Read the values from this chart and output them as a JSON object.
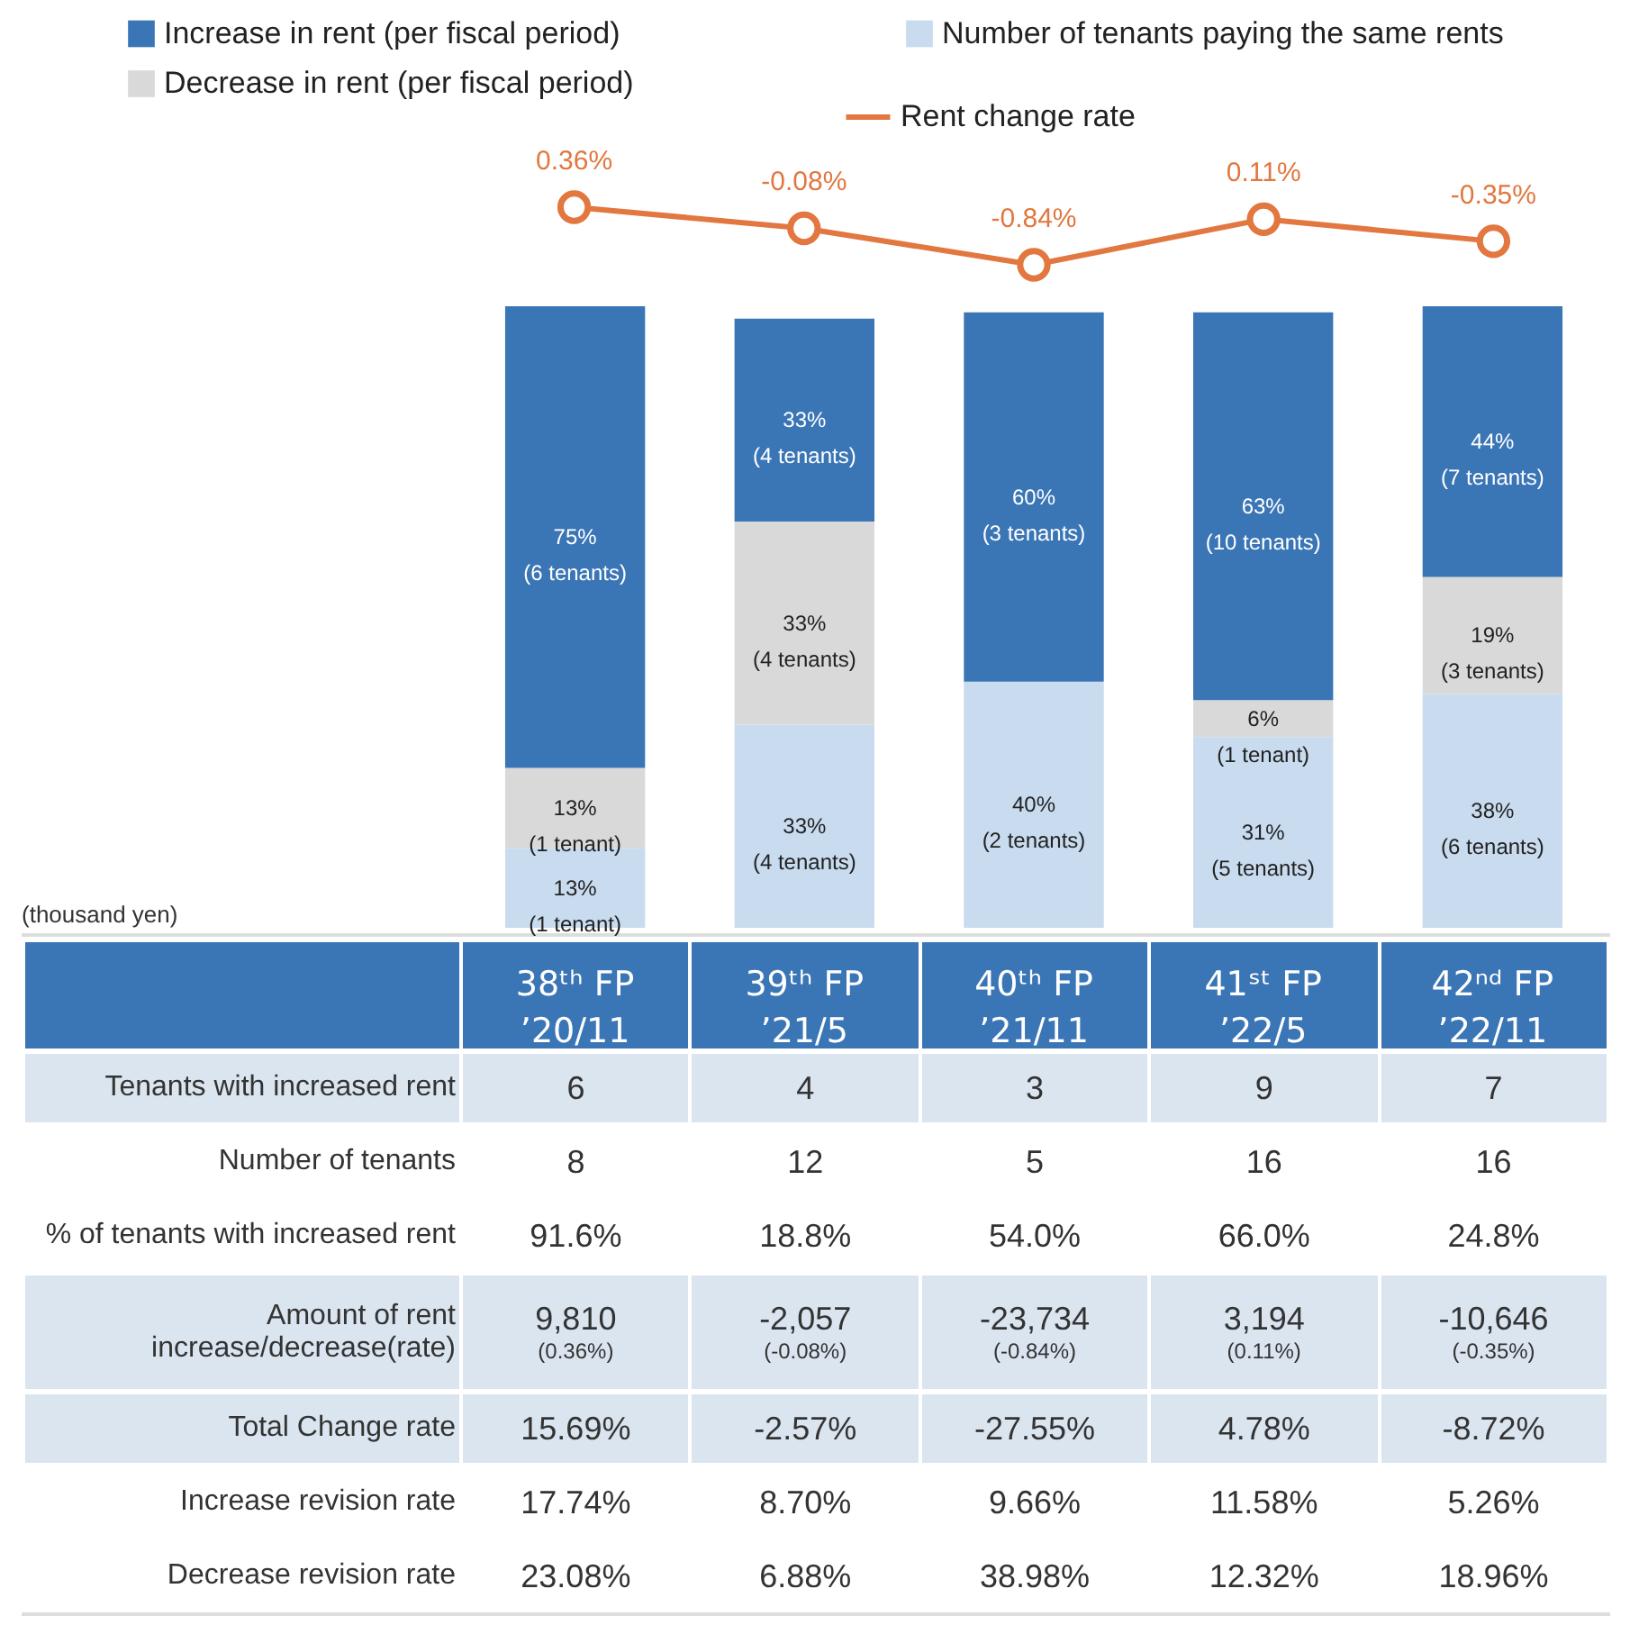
{
  "chart_data": [
    {
      "type": "line",
      "legend": "top",
      "marker": "circle",
      "categories": [
        null,
        null,
        null,
        null,
        null
      ],
      "series": [
        {
          "name": "Rent change rate",
          "color": "#e2773f",
          "values": [
            0.36,
            -0.08,
            -0.84,
            0.11,
            -0.35
          ],
          "value_labels": [
            "0.36%",
            "-0.08%",
            "-0.84%",
            "0.11%",
            "-0.35%"
          ]
        }
      ]
    },
    {
      "type": "bar",
      "stacked": true,
      "legend": "top left",
      "categories": [
        "38ᵗʰ FP\n’20/11",
        "39ᵗʰ FP\n’21/5",
        "40ᵗʰ FP\n’21/11",
        "41ˢᵗ FP\n’22/5",
        "42ⁿᵈ FP\n’22/11"
      ],
      "series": [
        {
          "name": "Number of tenants paying the same rents",
          "color": "#c8dbef",
          "values": [
            13,
            33,
            40,
            31,
            38
          ],
          "value_labels": [
            "13%\n(1 tenant)",
            "33%\n(4 tenants)",
            "40%\n(2 tenants)",
            "31%\n(5 tenants)",
            "38%\n(6 tenants)"
          ]
        },
        {
          "name": "Decrease in rent (per fiscal period)",
          "color": "#d9d9d9",
          "values": [
            13,
            33,
            null,
            6,
            19
          ],
          "value_labels": [
            "13%\n(1 tenant)",
            "33%\n(4 tenants)",
            null,
            "6%\n(1 tenant)",
            "19%\n(3 tenants)"
          ]
        },
        {
          "name": "Increase in rent (per fiscal period)",
          "color": "#3a75b5",
          "values": [
            75,
            33,
            60,
            63,
            44
          ],
          "value_labels": [
            "75%\n(6 tenants)",
            "33%\n(4 tenants)",
            "60%\n(3 tenants)",
            "63%\n(10 tenants)",
            "44%\n(7 tenants)"
          ]
        }
      ]
    },
    {
      "type": "other",
      "annotations": [
        "(thousand yen)"
      ],
      "y_categories": [
        "Tenants with increased rent",
        "Number of tenants",
        "% of tenants with increased rent",
        "Amount of rent increase/decrease(rate)",
        "Total Change rate",
        "Increase revision rate",
        "Decrease revision rate"
      ],
      "cell_labels": [
        [
          "6",
          "4",
          "3",
          "9",
          "7"
        ],
        [
          "8",
          "12",
          "5",
          "16",
          "16"
        ],
        [
          "91.6%",
          "18.8%",
          "54.0%",
          "66.0%",
          "24.8%"
        ],
        [
          "9,810\n(0.36%)",
          "-2,057\n(-0.08%)",
          "-23,734\n(-0.84%)",
          "3,194\n(0.11%)",
          "-10,646\n(-0.35%)"
        ],
        [
          "15.69%",
          "-2.57%",
          "-27.55%",
          "4.78%",
          "-8.72%"
        ],
        [
          "17.74%",
          "8.70%",
          "9.66%",
          "11.58%",
          "5.26%"
        ],
        [
          "23.08%",
          "6.88%",
          "38.98%",
          "12.32%",
          "18.96%"
        ]
      ]
    }
  ]
}
